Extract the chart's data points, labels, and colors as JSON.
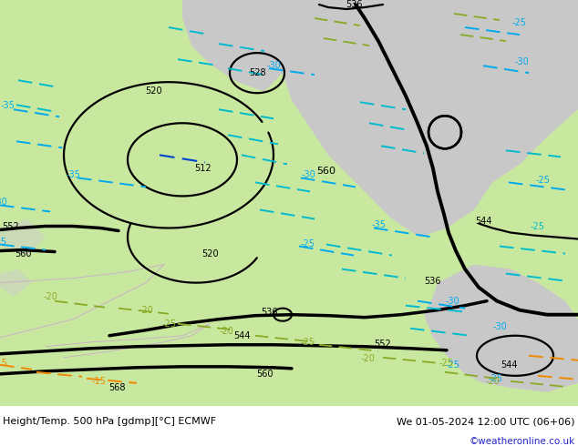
{
  "bottom_left_label": "Height/Temp. 500 hPa [gdmp][°C] ECMWF",
  "bottom_right_label": "We 01-05-2024 12:00 UTC (06+06)",
  "watermark": "©weatheronline.co.uk",
  "fig_width": 6.34,
  "fig_height": 4.9,
  "bg_land_green": "#c8e8a0",
  "bg_sea": "#c8c8c8",
  "contour_black": "#000000",
  "contour_blue_dark": "#0044cc",
  "contour_blue_light": "#00aaee",
  "contour_cyan": "#00bbcc",
  "contour_green": "#88aa22",
  "contour_orange": "#ee8800",
  "watermark_color": "#2222cc"
}
